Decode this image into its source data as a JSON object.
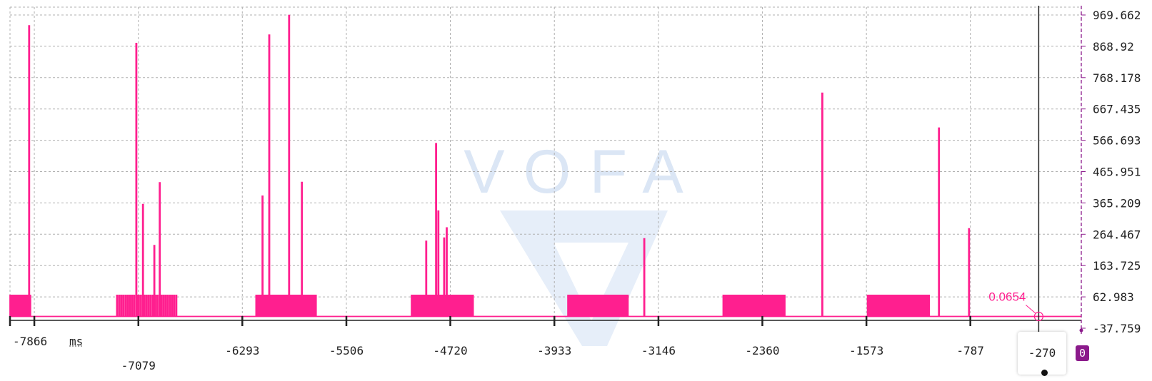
{
  "x_unit": "ms",
  "cursor": {
    "x_label": "-270",
    "value_label": "0.0654",
    "channel_badge": "0"
  },
  "colors": {
    "series": "#ff1f8f",
    "cursor_line": "#222222",
    "right_axis": "#8b1a8b",
    "watermark": "#dbe6f5",
    "grid": "#b0b0b0"
  },
  "chart_data": {
    "type": "line",
    "title": "",
    "xlabel": "ms",
    "ylabel": "",
    "xlim": [
      -8050,
      52
    ],
    "ylim": [
      -37.759,
      1000
    ],
    "grid": true,
    "watermark": "VOFA",
    "x_ticks": [
      -7866,
      -7079,
      -6293,
      -5506,
      -4720,
      -3933,
      -3146,
      -2360,
      -1573,
      -787
    ],
    "x_tick_labels": [
      "-7866",
      "-7079",
      "-6293",
      "-5506",
      "-4720",
      "-3933",
      "-3146",
      "-2360",
      "-1573",
      "-787"
    ],
    "y_ticks": [
      969.662,
      868.92,
      768.178,
      667.435,
      566.693,
      465.951,
      365.209,
      264.467,
      163.725,
      62.983,
      -37.759
    ],
    "y_tick_labels": [
      "969.662",
      "868.92",
      "768.178",
      "667.435",
      "566.693",
      "465.951",
      "365.209",
      "264.467",
      "163.725",
      "62.983",
      "-37.759"
    ],
    "series": [
      {
        "name": "",
        "baseline": 0.0654,
        "burst_level": 68,
        "bursts": [
          {
            "start": -8050,
            "end": -7893,
            "spacing": 15
          },
          {
            "start": -7243,
            "end": -6782,
            "spacing": 16
          },
          {
            "start": -6190,
            "end": -5736,
            "spacing": 15
          },
          {
            "start": -5014,
            "end": -4549,
            "spacing": 14
          },
          {
            "start": -3831,
            "end": -3377,
            "spacing": 15
          },
          {
            "start": -2657,
            "end": -2191,
            "spacing": 14
          },
          {
            "start": -1565,
            "end": -1101,
            "spacing": 14
          }
        ],
        "spikes": [
          {
            "x": -7908,
            "y": 935
          },
          {
            "x": -7097,
            "y": 878
          },
          {
            "x": -7047,
            "y": 360
          },
          {
            "x": -6961,
            "y": 228
          },
          {
            "x": -6920,
            "y": 430
          },
          {
            "x": -6143,
            "y": 387
          },
          {
            "x": -6092,
            "y": 905
          },
          {
            "x": -5942,
            "y": 968
          },
          {
            "x": -5845,
            "y": 431
          },
          {
            "x": -4905,
            "y": 242
          },
          {
            "x": -4830,
            "y": 556
          },
          {
            "x": -4813,
            "y": 339
          },
          {
            "x": -4769,
            "y": 252
          },
          {
            "x": -4750,
            "y": 285
          },
          {
            "x": -3256,
            "y": 250
          },
          {
            "x": -1909,
            "y": 718
          },
          {
            "x": -1027,
            "y": 606
          },
          {
            "x": -800,
            "y": 282
          }
        ]
      }
    ]
  }
}
